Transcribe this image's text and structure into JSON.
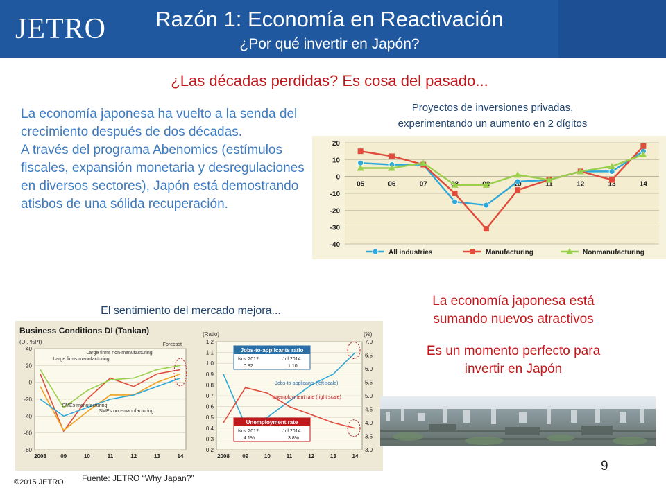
{
  "header": {
    "logo": "JETRO",
    "title": "Razón 1: Economía en Reactivación",
    "subtitle": "¿Por qué invertir en Japón?"
  },
  "tagline": "¿Las décadas perdidas?  Es cosa del pasado...",
  "intro": {
    "p1": "La economía japonesa ha vuelto a la senda del crecimiento después de dos décadas.",
    "p2": "A través del programa Abenomics (estímulos fiscales, expansión monetaria y desregulaciones en diversos sectores), Japón está demostrando atisbos de una sólida recuperación."
  },
  "chart1_caption": {
    "line1": "Proyectos de inversiones privadas,",
    "line2": "experimentando un aumento en 2 dígitos"
  },
  "chart2_caption": "El sentimiento del mercado mejora...",
  "right_text": {
    "attractive": "La economía japonesa está sumando nuevos atractivos",
    "perfect": "Es un momento perfecto para invertir en Japón"
  },
  "page_number": "9",
  "source": "Fuente: JETRO “Why Japan?”",
  "copyright": "©2015 JETRO",
  "colors": {
    "header": "#20589f",
    "red_text": "#c0191c",
    "blue_text": "#3d7bc0",
    "all_industries": "#2fa8d8",
    "manufacturing": "#e04b3c",
    "nonmanufacturing": "#9bcf4e"
  },
  "chart_data": [
    {
      "type": "line",
      "x": [
        "05",
        "06",
        "07",
        "08",
        "09",
        "10",
        "11",
        "12",
        "13",
        "14"
      ],
      "yticks": [
        "20",
        "10",
        "0",
        "-10",
        "-20",
        "-30",
        "-40"
      ],
      "ylim": [
        -40,
        20
      ],
      "grid": true,
      "legend": "bottom",
      "series": [
        {
          "name": "All industries",
          "color": "#2fa8d8",
          "marker": "circle",
          "values": [
            8,
            7,
            7,
            -15,
            -17,
            -3,
            -2,
            3,
            3,
            15
          ]
        },
        {
          "name": "Manufacturing",
          "color": "#e04b3c",
          "marker": "square",
          "values": [
            15,
            12,
            7,
            -10,
            -31,
            -8,
            -2,
            3,
            -2,
            18
          ]
        },
        {
          "name": "Nonmanufacturing",
          "color": "#9bcf4e",
          "marker": "triangle",
          "values": [
            5,
            5,
            8,
            -5,
            -5,
            1,
            -2,
            3,
            6,
            13
          ]
        }
      ]
    },
    {
      "type": "line",
      "title": "Business Conditions DI (Tankan)",
      "ylabel": "(DI, %Pt)",
      "x": [
        "2008",
        "09",
        "10",
        "11",
        "12",
        "13",
        "14"
      ],
      "yticks": [
        "40",
        "20",
        "0",
        "-20",
        "-40",
        "-60",
        "-80"
      ],
      "ylim": [
        -80,
        40
      ],
      "annotations": [
        "Forecast"
      ],
      "series": [
        {
          "name": "Large firms manufacturing",
          "color": "#e04b3c",
          "values": [
            10,
            -58,
            -20,
            5,
            -5,
            10,
            15
          ]
        },
        {
          "name": "Large firms non-manufacturing",
          "color": "#9bcf4e",
          "values": [
            15,
            -30,
            -10,
            3,
            5,
            15,
            20
          ]
        },
        {
          "name": "SMEs manufacturing",
          "color": "#f0a020",
          "values": [
            -5,
            -57,
            -35,
            -15,
            -15,
            0,
            10
          ]
        },
        {
          "name": "SMEs non-manufacturing",
          "color": "#2fa8d8",
          "values": [
            -20,
            -40,
            -30,
            -20,
            -15,
            -5,
            5
          ]
        }
      ]
    },
    {
      "type": "line",
      "x": [
        "2008",
        "09",
        "10",
        "11",
        "12",
        "13",
        "14"
      ],
      "yleft_label": "(Ratio)",
      "yright_label": "(%)",
      "yleft_ticks": [
        "1.2",
        "1.1",
        "1.0",
        "0.9",
        "0.8",
        "0.7",
        "0.6",
        "0.5",
        "0.4",
        "0.3",
        "0.2"
      ],
      "yright_ticks": [
        "7.0",
        "6.5",
        "6.0",
        "5.5",
        "5.0",
        "4.5",
        "4.0",
        "3.5",
        "3.0"
      ],
      "ylim_left": [
        0.2,
        1.2
      ],
      "ylim_right": [
        3.0,
        7.0
      ],
      "annotations": [
        {
          "title": "Jobs-to-applicants ratio",
          "from": "Nov 2012",
          "from_value": "0.82",
          "to": "Jul 2014",
          "to_value": "1.10"
        },
        {
          "title": "Unemployment rate",
          "from": "Nov 2012",
          "from_value": "4.1%",
          "to": "Jul 2014",
          "to_value": "3.8%"
        }
      ],
      "series": [
        {
          "name": "Jobs-to-applicants (left scale)",
          "color": "#2fa8d8",
          "values": [
            0.9,
            0.43,
            0.5,
            0.65,
            0.8,
            0.9,
            1.1
          ]
        },
        {
          "name": "Unemployment rate (right scale)",
          "color": "#e04b3c",
          "values": [
            4.0,
            5.3,
            5.1,
            4.6,
            4.3,
            4.0,
            3.8
          ]
        }
      ]
    }
  ]
}
